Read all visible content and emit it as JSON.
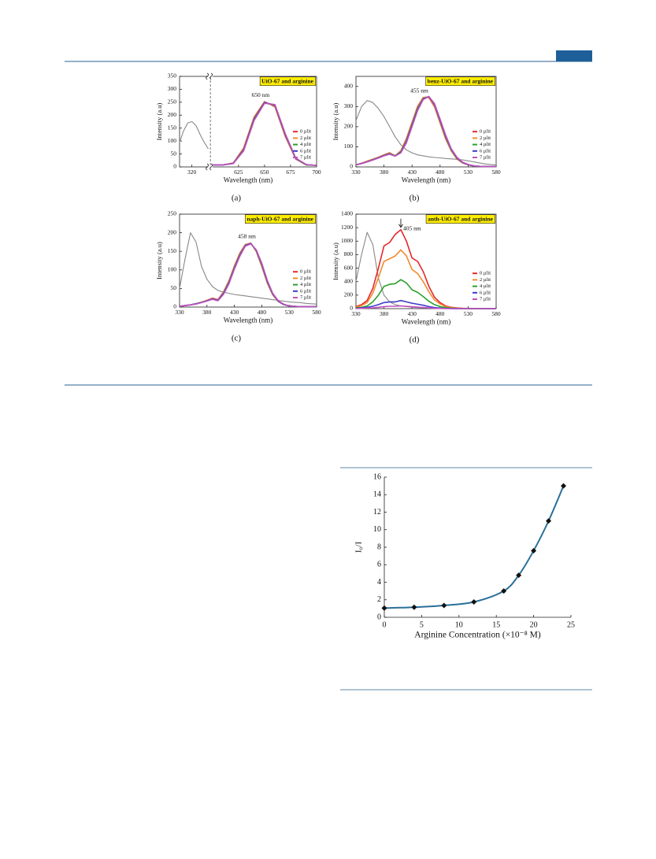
{
  "chart_data": [
    {
      "type": "line",
      "title": "UiO-67 and arginine",
      "caption": "(a)",
      "annotation": "650 nm",
      "xlabel": "Wavelength (nm)",
      "ylabel": "Intensity (a.u)",
      "x": [
        305,
        310,
        315,
        320,
        325,
        330,
        335,
        340,
        600,
        610,
        620,
        630,
        640,
        650,
        660,
        670,
        680,
        690,
        700
      ],
      "xlim": [
        305,
        700
      ],
      "axis_break": [
        340,
        600
      ],
      "xticks": [
        320,
        625,
        650,
        675,
        700
      ],
      "ylim": [
        0,
        350
      ],
      "yticks": [
        0,
        50,
        100,
        150,
        200,
        250,
        300,
        350
      ],
      "series": [
        {
          "color": "#888888",
          "values": [
            95,
            140,
            170,
            175,
            160,
            125,
            95,
            70,
            null,
            null,
            null,
            null,
            null,
            null,
            null,
            null,
            null,
            null,
            null
          ]
        },
        {
          "name": "0 µlit",
          "color": "#e8262a",
          "values": [
            null,
            null,
            null,
            null,
            null,
            null,
            null,
            null,
            8,
            8,
            15,
            72,
            192,
            252,
            233,
            118,
            30,
            8,
            6
          ]
        },
        {
          "name": "2 µlit",
          "color": "#f28b30",
          "values": [
            null,
            null,
            null,
            null,
            null,
            null,
            null,
            null,
            8,
            8,
            14,
            68,
            188,
            250,
            237,
            122,
            31,
            8,
            6
          ]
        },
        {
          "name": "4 µlit",
          "color": "#2ca02c",
          "values": [
            null,
            null,
            null,
            null,
            null,
            null,
            null,
            null,
            8,
            8,
            14,
            66,
            186,
            249,
            238,
            124,
            32,
            8,
            6
          ]
        },
        {
          "name": "6 µlit",
          "color": "#3b3bc8",
          "values": [
            null,
            null,
            null,
            null,
            null,
            null,
            null,
            null,
            8,
            8,
            13,
            64,
            183,
            248,
            240,
            126,
            33,
            9,
            6
          ]
        },
        {
          "name": "7 µlit",
          "color": "#c050c0",
          "values": [
            null,
            null,
            null,
            null,
            null,
            null,
            null,
            null,
            8,
            8,
            13,
            62,
            180,
            246,
            241,
            128,
            34,
            9,
            6
          ]
        }
      ]
    },
    {
      "type": "line",
      "title": "benz-UiO-67 and arginine",
      "caption": "(b)",
      "annotation": "455 nm",
      "xlabel": "Wavelength (nm)",
      "ylabel": "Intensity (a.u)",
      "x": [
        330,
        340,
        350,
        360,
        370,
        380,
        390,
        400,
        410,
        420,
        430,
        440,
        450,
        460,
        470,
        480,
        490,
        500,
        510,
        520,
        530,
        540,
        550,
        560,
        570,
        580
      ],
      "xlim": [
        330,
        580
      ],
      "xticks": [
        330,
        380,
        430,
        480,
        530,
        580
      ],
      "ylim": [
        0,
        450
      ],
      "yticks": [
        0,
        100,
        200,
        300,
        400
      ],
      "series": [
        {
          "color": "#888888",
          "values": [
            230,
            300,
            330,
            320,
            290,
            250,
            200,
            150,
            110,
            85,
            70,
            60,
            55,
            50,
            47,
            45,
            42,
            40,
            38,
            35,
            30,
            25,
            20,
            15,
            12,
            10
          ]
        },
        {
          "name": "0 µlit",
          "color": "#e8262a",
          "values": [
            10,
            18,
            28,
            38,
            48,
            60,
            70,
            55,
            80,
            140,
            220,
            300,
            345,
            345,
            300,
            220,
            140,
            80,
            40,
            20,
            10,
            5,
            3,
            2,
            2,
            2
          ]
        },
        {
          "name": "2 µlit",
          "color": "#f28b30",
          "values": [
            10,
            18,
            27,
            37,
            47,
            58,
            68,
            55,
            78,
            135,
            215,
            295,
            345,
            348,
            305,
            225,
            145,
            82,
            42,
            21,
            10,
            5,
            3,
            2,
            2,
            2
          ]
        },
        {
          "name": "4 µlit",
          "color": "#2ca02c",
          "values": [
            10,
            17,
            26,
            36,
            46,
            57,
            66,
            55,
            75,
            130,
            210,
            290,
            340,
            350,
            310,
            230,
            150,
            85,
            44,
            22,
            11,
            5,
            3,
            2,
            2,
            2
          ]
        },
        {
          "name": "6 µlit",
          "color": "#3b3bc8",
          "values": [
            10,
            17,
            25,
            35,
            45,
            56,
            64,
            54,
            72,
            125,
            205,
            285,
            338,
            350,
            312,
            234,
            154,
            88,
            46,
            23,
            11,
            5,
            3,
            2,
            2,
            2
          ]
        },
        {
          "name": "7 µlit",
          "color": "#c050c0",
          "values": [
            10,
            16,
            25,
            34,
            44,
            55,
            63,
            54,
            70,
            120,
            200,
            280,
            335,
            350,
            315,
            238,
            158,
            90,
            48,
            24,
            12,
            6,
            3,
            2,
            2,
            2
          ]
        }
      ]
    },
    {
      "type": "line",
      "title": "naph-UiO-67 and arginine",
      "caption": "(c)",
      "annotation": "458 nm",
      "xlabel": "Wavelength (nm)",
      "ylabel": "Intensity (a.u)",
      "x": [
        330,
        340,
        350,
        360,
        370,
        380,
        390,
        400,
        410,
        420,
        430,
        440,
        450,
        460,
        470,
        480,
        490,
        500,
        510,
        520,
        530,
        540,
        550,
        560,
        570,
        580
      ],
      "xlim": [
        330,
        580
      ],
      "xticks": [
        330,
        380,
        430,
        480,
        530,
        580
      ],
      "ylim": [
        0,
        250
      ],
      "yticks": [
        0,
        50,
        100,
        150,
        200,
        250
      ],
      "series": [
        {
          "color": "#888888",
          "values": [
            50,
            130,
            200,
            175,
            110,
            75,
            55,
            45,
            40,
            37,
            34,
            32,
            30,
            28,
            26,
            24,
            22,
            20,
            18,
            16,
            14,
            13,
            12,
            10,
            9,
            8
          ]
        },
        {
          "name": "0 µlit",
          "color": "#e8262a",
          "values": [
            2,
            4,
            6,
            9,
            13,
            18,
            24,
            20,
            40,
            70,
            110,
            145,
            168,
            172,
            150,
            110,
            65,
            33,
            15,
            7,
            3,
            2,
            1,
            1,
            1,
            1
          ]
        },
        {
          "name": "2 µlit",
          "color": "#f28b30",
          "values": [
            2,
            4,
            6,
            9,
            13,
            18,
            23,
            19,
            39,
            68,
            108,
            143,
            167,
            172,
            151,
            112,
            66,
            34,
            15,
            7,
            3,
            2,
            1,
            1,
            1,
            1
          ]
        },
        {
          "name": "4 µlit",
          "color": "#2ca02c",
          "values": [
            2,
            4,
            6,
            9,
            13,
            17,
            22,
            18,
            37,
            66,
            106,
            141,
            166,
            171,
            152,
            114,
            68,
            35,
            16,
            7,
            3,
            2,
            1,
            1,
            1,
            1
          ]
        },
        {
          "name": "6 µlit",
          "color": "#3b3bc8",
          "values": [
            2,
            4,
            6,
            9,
            12,
            17,
            22,
            18,
            36,
            64,
            104,
            139,
            165,
            171,
            153,
            116,
            70,
            36,
            16,
            7,
            3,
            2,
            1,
            1,
            1,
            1
          ]
        },
        {
          "name": "7 µlit",
          "color": "#c050c0",
          "values": [
            2,
            4,
            6,
            8,
            12,
            16,
            21,
            17,
            34,
            62,
            102,
            137,
            164,
            170,
            154,
            118,
            72,
            37,
            17,
            8,
            3,
            2,
            1,
            1,
            1,
            1
          ]
        }
      ]
    },
    {
      "type": "line",
      "title": "anth-UiO-67 and arginine",
      "caption": "(d)",
      "annotation": "405 nm",
      "xlabel": "Wavelength (nm)",
      "ylabel": "Intensity (a.u)",
      "x": [
        330,
        340,
        350,
        360,
        370,
        380,
        390,
        400,
        410,
        420,
        430,
        440,
        450,
        460,
        470,
        480,
        490,
        500,
        510,
        520,
        530,
        540,
        550,
        560,
        570,
        580
      ],
      "xlim": [
        330,
        580
      ],
      "xticks": [
        330,
        380,
        430,
        480,
        530,
        580
      ],
      "ylim": [
        0,
        1400
      ],
      "yticks": [
        0,
        200,
        400,
        600,
        800,
        1000,
        1200,
        1400
      ],
      "series": [
        {
          "color": "#888888",
          "values": [
            400,
            800,
            1130,
            950,
            450,
            200,
            100,
            60,
            40,
            30,
            20,
            15,
            12,
            10,
            8,
            6,
            5,
            4,
            3,
            2,
            2,
            1,
            1,
            1,
            1,
            1
          ]
        },
        {
          "name": "0 µlit",
          "color": "#e8262a",
          "values": [
            30,
            60,
            120,
            300,
            600,
            930,
            980,
            1100,
            1170,
            1000,
            750,
            700,
            550,
            330,
            170,
            90,
            40,
            20,
            10,
            5,
            3,
            2,
            1,
            0,
            0,
            0
          ]
        },
        {
          "name": "2 µlit",
          "color": "#f28b30",
          "values": [
            20,
            45,
            90,
            230,
            460,
            700,
            740,
            780,
            870,
            780,
            580,
            520,
            400,
            250,
            130,
            70,
            30,
            15,
            8,
            4,
            2,
            1,
            0,
            0,
            0,
            0
          ]
        },
        {
          "name": "4 µlit",
          "color": "#2ca02c",
          "values": [
            10,
            20,
            40,
            100,
            200,
            330,
            360,
            370,
            430,
            380,
            280,
            240,
            180,
            110,
            60,
            30,
            15,
            8,
            4,
            2,
            1,
            0,
            0,
            0,
            0,
            0
          ]
        },
        {
          "name": "6 µlit",
          "color": "#3b3bc8",
          "values": [
            5,
            10,
            20,
            35,
            60,
            90,
            100,
            100,
            120,
            100,
            80,
            65,
            50,
            30,
            15,
            8,
            4,
            2,
            1,
            0,
            0,
            0,
            0,
            0,
            0,
            0
          ]
        },
        {
          "name": "7 µlit",
          "color": "#c050c0",
          "values": [
            2,
            4,
            8,
            12,
            20,
            30,
            35,
            35,
            40,
            35,
            28,
            22,
            17,
            10,
            5,
            3,
            1,
            0,
            0,
            0,
            0,
            0,
            0,
            0,
            0,
            0
          ]
        }
      ]
    },
    {
      "type": "scatter",
      "line": true,
      "xlabel": "Arginine Concentration  (×10⁻⁸ M)",
      "ylabel": "I₀/I",
      "x": [
        0,
        4,
        8,
        12,
        16,
        18,
        20,
        22,
        24
      ],
      "values": [
        1.05,
        1.15,
        1.35,
        1.75,
        3.0,
        4.8,
        7.6,
        11,
        15
      ],
      "color": "#111111",
      "line_color": "#2a6f9a",
      "xlim": [
        0,
        25
      ],
      "xticks": [
        0,
        5,
        10,
        15,
        20,
        25
      ],
      "ylim": [
        0,
        16
      ],
      "yticks": [
        0,
        2,
        4,
        6,
        8,
        10,
        12,
        14,
        16
      ]
    }
  ]
}
